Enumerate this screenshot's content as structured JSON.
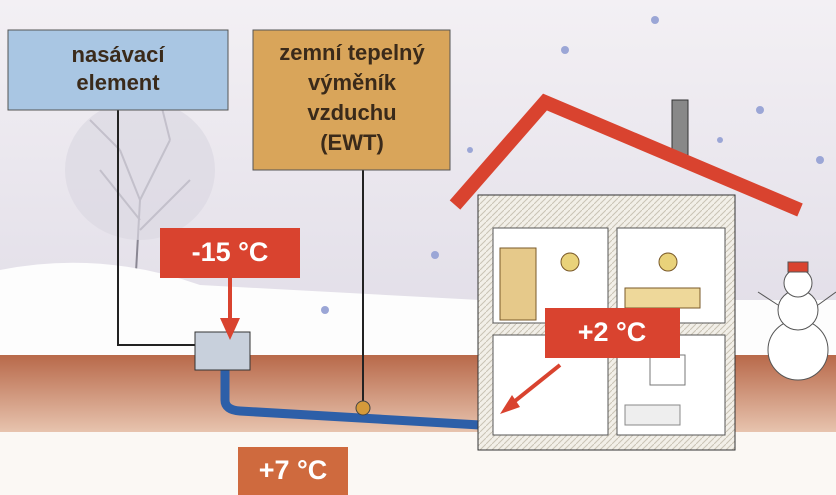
{
  "labels": [
    {
      "lines": [
        "nasávací",
        "element"
      ]
    },
    {
      "lines": [
        "zemní tepelný",
        "výměník",
        "vzduchu",
        "(EWT)"
      ]
    }
  ],
  "temperatures": [
    "-15 °C",
    "+2 °C",
    "+7 °C"
  ]
}
